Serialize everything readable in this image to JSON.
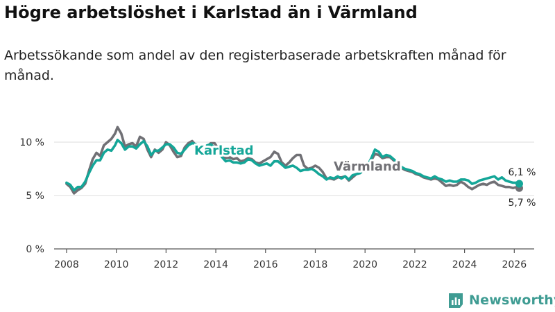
{
  "header": {
    "title": "Högre arbetslöshet i Karlstad än i Värmland",
    "subtitle": "Arbetssökande som andel av den registerbaserade arbetskraften månad för månad."
  },
  "brand": {
    "name": "Newsworthy",
    "icon": "newsworthy-logo-icon"
  },
  "colors": {
    "karlstad": "#14a698",
    "varmland": "#707075",
    "grid": "#dcdcdc",
    "axis": "#555555"
  },
  "chart_data": {
    "type": "line",
    "title": "Högre arbetslöshet i Karlstad än i Värmland",
    "xlabel": "",
    "ylabel": "",
    "xlim": [
      2007.5,
      2026.8
    ],
    "ylim": [
      0,
      10
    ],
    "y_ticks": [
      0,
      5,
      10
    ],
    "y_tick_labels": [
      "0 %",
      "5 %",
      "10 %"
    ],
    "x_ticks": [
      2008,
      2010,
      2012,
      2014,
      2016,
      2018,
      2020,
      2022,
      2024,
      2026
    ],
    "x_tick_labels": [
      "2008",
      "2010",
      "2012",
      "2014",
      "2016",
      "2018",
      "2020",
      "2022",
      "2024",
      "2026"
    ],
    "grid": true,
    "series": [
      {
        "name": "Karlstad",
        "label": "Karlstad",
        "end_label": "6,1 %",
        "end_value": 6.1,
        "points": [
          [
            2008.0,
            6.2
          ],
          [
            2008.15,
            6.0
          ],
          [
            2008.3,
            5.5
          ],
          [
            2008.45,
            5.8
          ],
          [
            2008.6,
            5.8
          ],
          [
            2008.75,
            6.3
          ],
          [
            2008.9,
            7.1
          ],
          [
            2009.05,
            7.8
          ],
          [
            2009.2,
            8.3
          ],
          [
            2009.35,
            8.3
          ],
          [
            2009.5,
            9.0
          ],
          [
            2009.65,
            9.3
          ],
          [
            2009.8,
            9.2
          ],
          [
            2009.95,
            9.7
          ],
          [
            2010.05,
            10.2
          ],
          [
            2010.2,
            9.9
          ],
          [
            2010.35,
            9.3
          ],
          [
            2010.5,
            9.6
          ],
          [
            2010.65,
            9.6
          ],
          [
            2010.8,
            9.4
          ],
          [
            2010.95,
            9.8
          ],
          [
            2011.1,
            10.1
          ],
          [
            2011.25,
            9.6
          ],
          [
            2011.4,
            8.8
          ],
          [
            2011.55,
            9.2
          ],
          [
            2011.7,
            9.2
          ],
          [
            2011.85,
            9.5
          ],
          [
            2012.0,
            9.8
          ],
          [
            2012.15,
            9.8
          ],
          [
            2012.3,
            9.5
          ],
          [
            2012.45,
            9.0
          ],
          [
            2012.6,
            8.9
          ],
          [
            2012.75,
            9.3
          ],
          [
            2012.9,
            9.7
          ],
          [
            2013.05,
            9.9
          ],
          [
            2013.2,
            9.8
          ],
          [
            2013.35,
            9.6
          ],
          [
            2013.5,
            9.4
          ],
          [
            2013.65,
            9.7
          ],
          [
            2013.8,
            9.8
          ],
          [
            2013.95,
            9.5
          ],
          [
            2014.1,
            9.2
          ],
          [
            2014.25,
            8.6
          ],
          [
            2014.4,
            8.2
          ],
          [
            2014.55,
            8.3
          ],
          [
            2014.7,
            8.1
          ],
          [
            2014.85,
            8.1
          ],
          [
            2015.0,
            8.0
          ],
          [
            2015.15,
            8.1
          ],
          [
            2015.3,
            8.4
          ],
          [
            2015.45,
            8.3
          ],
          [
            2015.6,
            8.0
          ],
          [
            2015.75,
            7.8
          ],
          [
            2015.9,
            7.9
          ],
          [
            2016.05,
            8.0
          ],
          [
            2016.2,
            7.8
          ],
          [
            2016.35,
            8.2
          ],
          [
            2016.5,
            8.2
          ],
          [
            2016.65,
            7.9
          ],
          [
            2016.8,
            7.6
          ],
          [
            2016.95,
            7.7
          ],
          [
            2017.1,
            7.8
          ],
          [
            2017.25,
            7.6
          ],
          [
            2017.4,
            7.3
          ],
          [
            2017.55,
            7.4
          ],
          [
            2017.7,
            7.4
          ],
          [
            2017.85,
            7.5
          ],
          [
            2018.0,
            7.3
          ],
          [
            2018.15,
            7.0
          ],
          [
            2018.3,
            6.8
          ],
          [
            2018.45,
            6.5
          ],
          [
            2018.6,
            6.7
          ],
          [
            2018.75,
            6.6
          ],
          [
            2018.9,
            6.8
          ],
          [
            2019.05,
            6.6
          ],
          [
            2019.2,
            6.8
          ],
          [
            2019.35,
            6.5
          ],
          [
            2019.5,
            6.9
          ],
          [
            2019.65,
            7.0
          ],
          [
            2019.8,
            7.1
          ],
          [
            2019.95,
            7.4
          ],
          [
            2020.1,
            7.8
          ],
          [
            2020.25,
            8.5
          ],
          [
            2020.4,
            9.3
          ],
          [
            2020.55,
            9.1
          ],
          [
            2020.7,
            8.6
          ],
          [
            2020.85,
            8.8
          ],
          [
            2021.0,
            8.7
          ],
          [
            2021.15,
            8.4
          ],
          [
            2021.3,
            8.1
          ],
          [
            2021.45,
            7.7
          ],
          [
            2021.6,
            7.5
          ],
          [
            2021.75,
            7.4
          ],
          [
            2021.9,
            7.3
          ],
          [
            2022.05,
            7.1
          ],
          [
            2022.2,
            7.0
          ],
          [
            2022.35,
            6.8
          ],
          [
            2022.5,
            6.7
          ],
          [
            2022.65,
            6.6
          ],
          [
            2022.8,
            6.8
          ],
          [
            2022.95,
            6.6
          ],
          [
            2023.1,
            6.5
          ],
          [
            2023.25,
            6.3
          ],
          [
            2023.4,
            6.4
          ],
          [
            2023.55,
            6.3
          ],
          [
            2023.7,
            6.3
          ],
          [
            2023.85,
            6.5
          ],
          [
            2024.0,
            6.5
          ],
          [
            2024.15,
            6.4
          ],
          [
            2024.3,
            6.1
          ],
          [
            2024.45,
            6.2
          ],
          [
            2024.6,
            6.4
          ],
          [
            2024.75,
            6.5
          ],
          [
            2024.9,
            6.6
          ],
          [
            2025.05,
            6.7
          ],
          [
            2025.2,
            6.8
          ],
          [
            2025.35,
            6.5
          ],
          [
            2025.5,
            6.7
          ],
          [
            2025.65,
            6.4
          ],
          [
            2025.8,
            6.3
          ],
          [
            2025.95,
            6.2
          ],
          [
            2026.1,
            6.2
          ],
          [
            2026.2,
            6.1
          ]
        ]
      },
      {
        "name": "Värmland",
        "label": "Värmland",
        "end_label": "5,7 %",
        "end_value": 5.7,
        "points": [
          [
            2008.0,
            6.1
          ],
          [
            2008.15,
            5.8
          ],
          [
            2008.3,
            5.2
          ],
          [
            2008.45,
            5.5
          ],
          [
            2008.6,
            5.7
          ],
          [
            2008.75,
            6.1
          ],
          [
            2008.9,
            7.3
          ],
          [
            2009.05,
            8.4
          ],
          [
            2009.2,
            9.0
          ],
          [
            2009.35,
            8.7
          ],
          [
            2009.5,
            9.7
          ],
          [
            2009.65,
            10.0
          ],
          [
            2009.8,
            10.3
          ],
          [
            2009.95,
            10.8
          ],
          [
            2010.05,
            11.4
          ],
          [
            2010.2,
            10.8
          ],
          [
            2010.35,
            9.6
          ],
          [
            2010.5,
            9.8
          ],
          [
            2010.65,
            9.9
          ],
          [
            2010.8,
            9.6
          ],
          [
            2010.95,
            10.5
          ],
          [
            2011.1,
            10.3
          ],
          [
            2011.25,
            9.3
          ],
          [
            2011.4,
            8.6
          ],
          [
            2011.55,
            9.3
          ],
          [
            2011.7,
            9.0
          ],
          [
            2011.85,
            9.3
          ],
          [
            2012.0,
            10.0
          ],
          [
            2012.15,
            9.7
          ],
          [
            2012.3,
            9.1
          ],
          [
            2012.45,
            8.6
          ],
          [
            2012.6,
            8.7
          ],
          [
            2012.75,
            9.5
          ],
          [
            2012.9,
            9.9
          ],
          [
            2013.05,
            10.1
          ],
          [
            2013.2,
            9.7
          ],
          [
            2013.35,
            9.2
          ],
          [
            2013.5,
            9.0
          ],
          [
            2013.65,
            9.6
          ],
          [
            2013.8,
            9.9
          ],
          [
            2013.95,
            9.9
          ],
          [
            2014.1,
            9.4
          ],
          [
            2014.25,
            8.8
          ],
          [
            2014.4,
            8.5
          ],
          [
            2014.55,
            8.6
          ],
          [
            2014.7,
            8.4
          ],
          [
            2014.85,
            8.5
          ],
          [
            2015.0,
            8.2
          ],
          [
            2015.15,
            8.3
          ],
          [
            2015.3,
            8.5
          ],
          [
            2015.45,
            8.4
          ],
          [
            2015.6,
            8.1
          ],
          [
            2015.75,
            8.0
          ],
          [
            2015.9,
            8.2
          ],
          [
            2016.05,
            8.4
          ],
          [
            2016.2,
            8.6
          ],
          [
            2016.35,
            9.1
          ],
          [
            2016.5,
            8.9
          ],
          [
            2016.65,
            8.1
          ],
          [
            2016.8,
            7.8
          ],
          [
            2016.95,
            8.1
          ],
          [
            2017.1,
            8.5
          ],
          [
            2017.25,
            8.8
          ],
          [
            2017.4,
            8.8
          ],
          [
            2017.55,
            7.8
          ],
          [
            2017.7,
            7.5
          ],
          [
            2017.85,
            7.6
          ],
          [
            2018.0,
            7.8
          ],
          [
            2018.15,
            7.6
          ],
          [
            2018.3,
            7.2
          ],
          [
            2018.45,
            6.6
          ],
          [
            2018.6,
            6.6
          ],
          [
            2018.75,
            6.5
          ],
          [
            2018.9,
            6.7
          ],
          [
            2019.05,
            6.7
          ],
          [
            2019.2,
            6.8
          ],
          [
            2019.35,
            6.4
          ],
          [
            2019.5,
            6.7
          ],
          [
            2019.65,
            7.0
          ],
          [
            2019.8,
            7.1
          ],
          [
            2019.95,
            7.4
          ],
          [
            2020.1,
            7.8
          ],
          [
            2020.25,
            8.3
          ],
          [
            2020.4,
            8.9
          ],
          [
            2020.55,
            8.8
          ],
          [
            2020.7,
            8.5
          ],
          [
            2020.85,
            8.6
          ],
          [
            2021.0,
            8.6
          ],
          [
            2021.15,
            8.3
          ],
          [
            2021.3,
            8.0
          ],
          [
            2021.45,
            7.6
          ],
          [
            2021.6,
            7.4
          ],
          [
            2021.75,
            7.3
          ],
          [
            2021.9,
            7.2
          ],
          [
            2022.05,
            7.0
          ],
          [
            2022.2,
            6.9
          ],
          [
            2022.35,
            6.7
          ],
          [
            2022.5,
            6.6
          ],
          [
            2022.65,
            6.5
          ],
          [
            2022.8,
            6.6
          ],
          [
            2022.95,
            6.5
          ],
          [
            2023.1,
            6.2
          ],
          [
            2023.25,
            5.9
          ],
          [
            2023.4,
            6.0
          ],
          [
            2023.55,
            5.9
          ],
          [
            2023.7,
            6.0
          ],
          [
            2023.85,
            6.3
          ],
          [
            2024.0,
            6.1
          ],
          [
            2024.15,
            5.8
          ],
          [
            2024.3,
            5.6
          ],
          [
            2024.45,
            5.8
          ],
          [
            2024.6,
            6.0
          ],
          [
            2024.75,
            6.1
          ],
          [
            2024.9,
            6.0
          ],
          [
            2025.05,
            6.2
          ],
          [
            2025.2,
            6.3
          ],
          [
            2025.35,
            6.0
          ],
          [
            2025.5,
            5.9
          ],
          [
            2025.65,
            5.8
          ],
          [
            2025.8,
            5.8
          ],
          [
            2025.95,
            5.7
          ],
          [
            2026.1,
            5.8
          ],
          [
            2026.2,
            5.7
          ]
        ]
      }
    ]
  }
}
